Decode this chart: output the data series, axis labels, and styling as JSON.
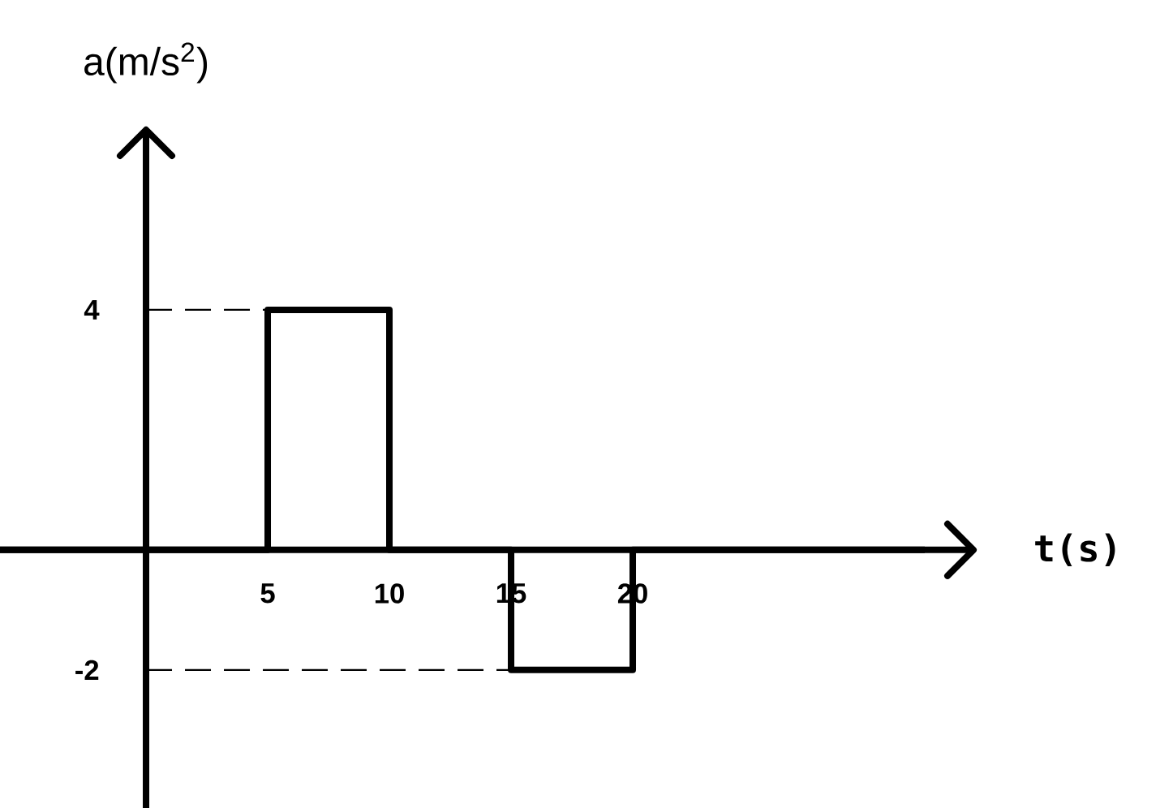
{
  "chart_data": {
    "type": "line",
    "xlabel": "t(s)",
    "ylabel": "a(m/s$^{2}$)",
    "x": [
      -6,
      5,
      5,
      10,
      10,
      15,
      15,
      20,
      20,
      32
    ],
    "values": [
      0,
      0,
      4,
      4,
      0,
      0,
      -2,
      -2,
      0,
      0
    ],
    "color": "#000000",
    "xlim": [
      -6,
      34
    ],
    "ylim": [
      -4.3,
      7
    ],
    "xticks": [
      5,
      10,
      15,
      20
    ],
    "yticks": [
      4,
      -2
    ],
    "ref_lines": [
      {
        "axis": "y",
        "value": 4,
        "line_style": "dashed"
      },
      {
        "axis": "y",
        "value": -2,
        "line_style": "dashed"
      }
    ],
    "grid": false,
    "legend": false,
    "marker": "none",
    "line_style": "solid"
  }
}
